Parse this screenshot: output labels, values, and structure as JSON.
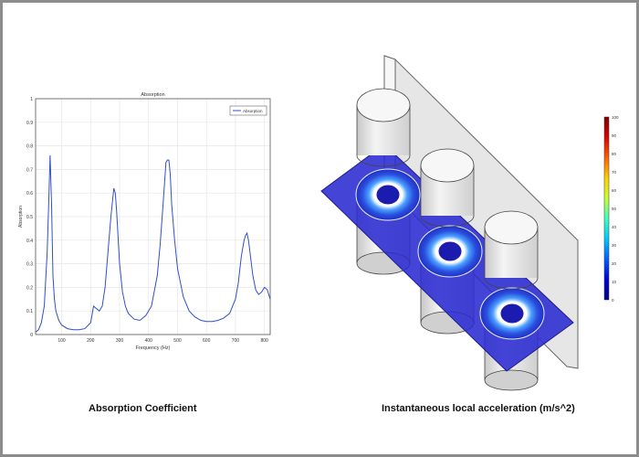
{
  "captions": {
    "left": "Absorption Coefficient",
    "right": "Instantaneous local acceleration (m/s^2)"
  },
  "chart_data": {
    "type": "line",
    "title": "Absorption",
    "xlabel": "Frequency (Hz)",
    "ylabel": "Absorption",
    "xlim": [
      10,
      820
    ],
    "ylim": [
      0,
      1
    ],
    "xticks": [
      100,
      200,
      300,
      400,
      500,
      600,
      700,
      800
    ],
    "yticks": [
      0,
      0.1,
      0.2,
      0.3,
      0.4,
      0.5,
      0.6,
      0.7,
      0.8,
      0.9,
      1
    ],
    "grid": true,
    "legend_position": "top-right",
    "series": [
      {
        "name": "Absorption",
        "color": "#3050c8",
        "x": [
          10,
          20,
          30,
          40,
          50,
          55,
          60,
          65,
          70,
          75,
          80,
          90,
          100,
          120,
          140,
          160,
          180,
          200,
          210,
          220,
          230,
          240,
          250,
          260,
          270,
          280,
          285,
          290,
          300,
          310,
          320,
          330,
          350,
          370,
          390,
          410,
          430,
          440,
          450,
          460,
          465,
          470,
          475,
          480,
          490,
          500,
          520,
          540,
          560,
          580,
          600,
          620,
          640,
          660,
          680,
          700,
          710,
          720,
          730,
          735,
          740,
          745,
          750,
          760,
          770,
          780,
          790,
          800,
          810,
          820
        ],
        "values": [
          0.01,
          0.02,
          0.05,
          0.12,
          0.35,
          0.55,
          0.76,
          0.55,
          0.25,
          0.15,
          0.1,
          0.06,
          0.04,
          0.025,
          0.02,
          0.02,
          0.025,
          0.05,
          0.12,
          0.11,
          0.1,
          0.12,
          0.2,
          0.35,
          0.5,
          0.62,
          0.6,
          0.52,
          0.3,
          0.18,
          0.12,
          0.09,
          0.065,
          0.06,
          0.08,
          0.12,
          0.25,
          0.38,
          0.55,
          0.73,
          0.74,
          0.74,
          0.68,
          0.55,
          0.4,
          0.28,
          0.16,
          0.1,
          0.075,
          0.06,
          0.055,
          0.055,
          0.06,
          0.07,
          0.09,
          0.15,
          0.22,
          0.33,
          0.4,
          0.42,
          0.43,
          0.4,
          0.35,
          0.25,
          0.19,
          0.17,
          0.18,
          0.2,
          0.19,
          0.15
        ]
      }
    ]
  },
  "colorbar": {
    "ticks": [
      "100",
      "90",
      "80",
      "70",
      "60",
      "50",
      "40",
      "30",
      "20",
      "10",
      "0"
    ],
    "colors": [
      "#800000",
      "#e00000",
      "#ff6000",
      "#ffd000",
      "#c8ff30",
      "#40ffc0",
      "#00c8ff",
      "#0060ff",
      "#0000e0",
      "#00008a"
    ]
  }
}
